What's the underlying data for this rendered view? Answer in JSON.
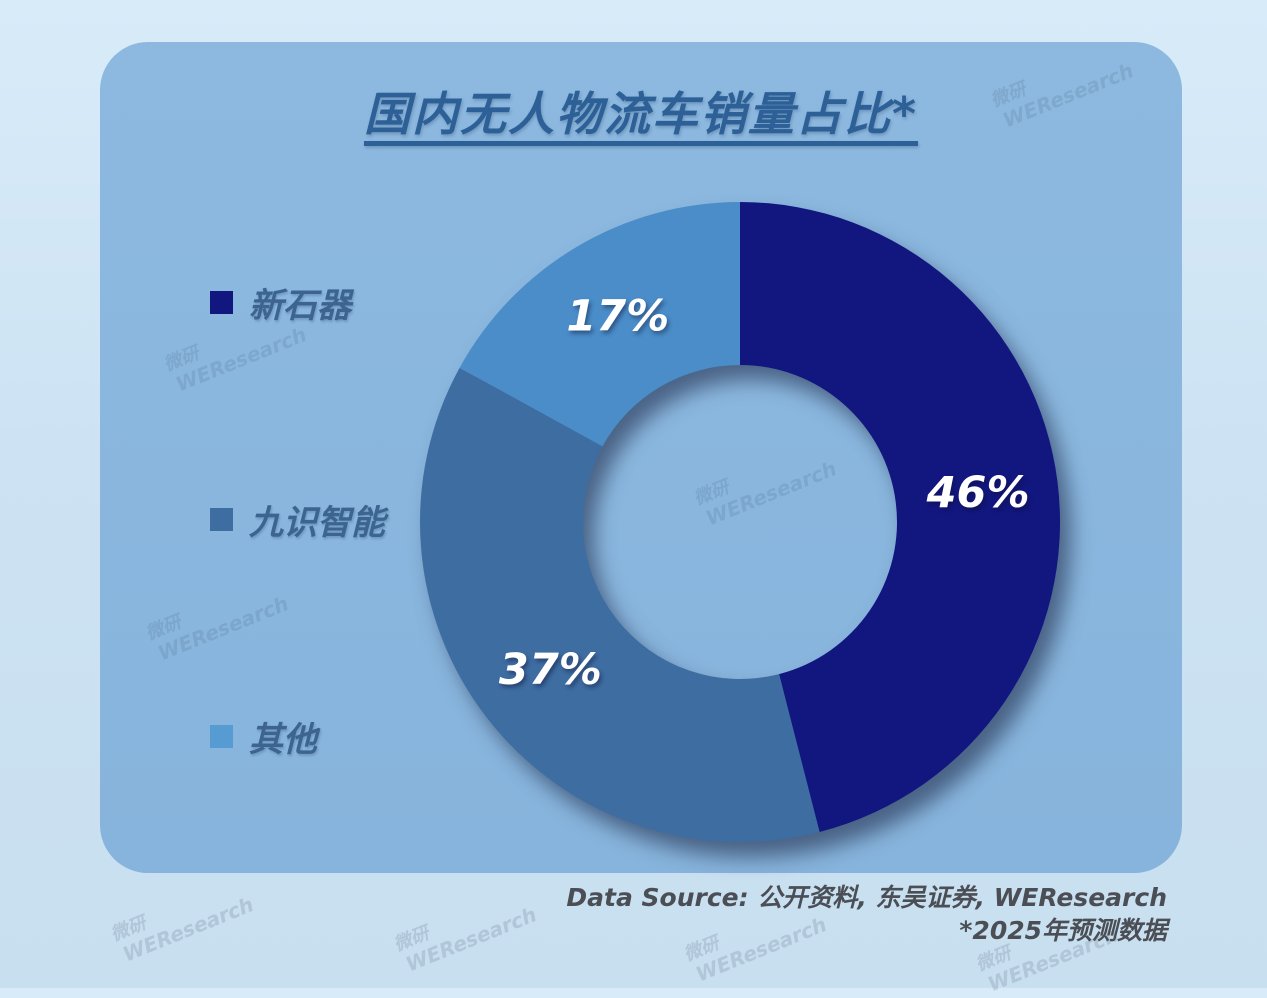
{
  "title": {
    "text": "国内无人物流车销量占比*",
    "color": "#2d6097"
  },
  "legend": {
    "text_color": "#3c648f",
    "items": [
      {
        "label": "新石器",
        "color": "#12167f"
      },
      {
        "label": "九识智能",
        "color": "#3e6da2"
      },
      {
        "label": "其他",
        "color": "#569bd2"
      }
    ]
  },
  "chart_data": {
    "type": "pie",
    "donut": true,
    "title": "国内无人物流车销量占比*",
    "categories": [
      "新石器",
      "九识智能",
      "其他"
    ],
    "values": [
      46,
      37,
      17
    ],
    "unit": "%",
    "labels": [
      "46%",
      "37%",
      "17%"
    ],
    "colors": [
      "#12167f",
      "#3e6da2",
      "#4a8dc9"
    ],
    "start_angle_deg": 0,
    "direction": "clockwise",
    "inner_radius_ratio": 0.49,
    "legend_position": "left",
    "label_color": "#ffffff"
  },
  "source": {
    "line1": "Data Source: 公开资料, 东吴证券, WEResearch",
    "line2": "*2025年预测数据",
    "color": "#4b4f55"
  },
  "watermark": {
    "line1": "微研",
    "line2": "WEResearch"
  },
  "colors": {
    "page_bg": "#cfe4f4",
    "card_bg": "#8ab7de"
  }
}
